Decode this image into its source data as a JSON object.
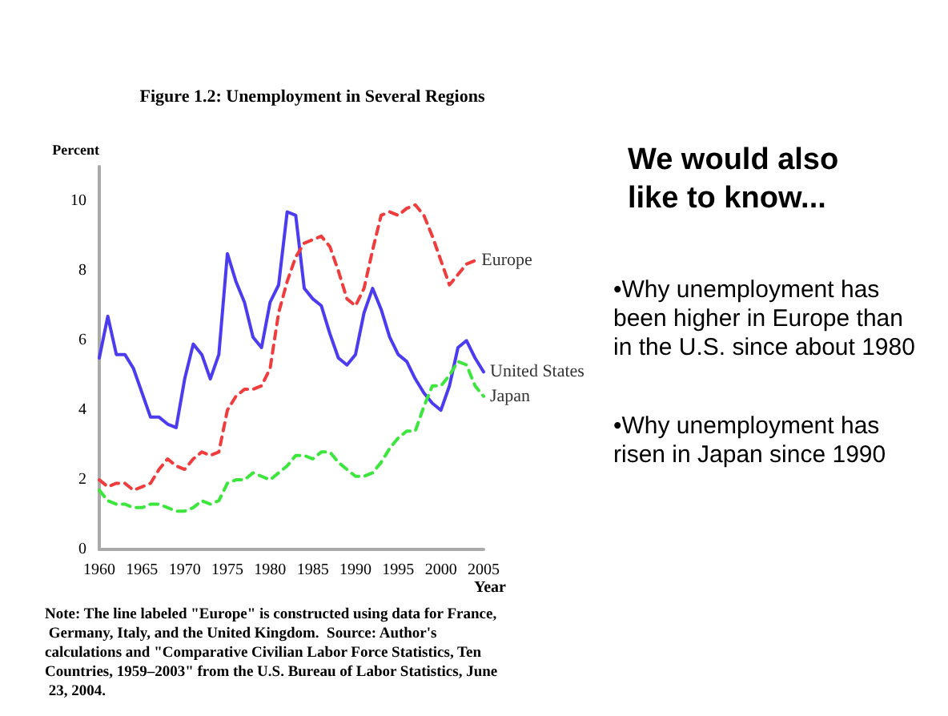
{
  "chart_data": {
    "type": "line",
    "title": "Figure 1.2: Unemployment in Several Regions",
    "ylabel": "Percent",
    "xlabel": "Year",
    "x": [
      1960,
      1961,
      1962,
      1963,
      1964,
      1965,
      1966,
      1967,
      1968,
      1969,
      1970,
      1971,
      1972,
      1973,
      1974,
      1975,
      1976,
      1977,
      1978,
      1979,
      1980,
      1981,
      1982,
      1983,
      1984,
      1985,
      1986,
      1987,
      1988,
      1989,
      1990,
      1991,
      1992,
      1993,
      1994,
      1995,
      1996,
      1997,
      1998,
      1999,
      2000,
      2001,
      2002,
      2003,
      2004,
      2005
    ],
    "series": [
      {
        "name": "United States",
        "color": "#4b3cf0",
        "line_style": "solid",
        "values": [
          5.5,
          6.7,
          5.6,
          5.6,
          5.2,
          4.5,
          3.8,
          3.8,
          3.6,
          3.5,
          4.9,
          5.9,
          5.6,
          4.9,
          5.6,
          8.5,
          7.7,
          7.1,
          6.1,
          5.8,
          7.1,
          7.6,
          9.7,
          9.6,
          7.5,
          7.2,
          7.0,
          6.2,
          5.5,
          5.3,
          5.6,
          6.8,
          7.5,
          6.9,
          6.1,
          5.6,
          5.4,
          4.9,
          4.5,
          4.2,
          4.0,
          4.7,
          5.8,
          6.0,
          5.5,
          5.1
        ]
      },
      {
        "name": "Europe",
        "color": "#f03c3c",
        "line_style": "dashed",
        "values": [
          2.0,
          1.8,
          1.9,
          1.9,
          1.7,
          1.8,
          1.9,
          2.3,
          2.6,
          2.4,
          2.3,
          2.6,
          2.8,
          2.7,
          2.8,
          4.0,
          4.4,
          4.6,
          4.6,
          4.7,
          5.2,
          6.8,
          7.7,
          8.4,
          8.8,
          8.9,
          9.0,
          8.7,
          8.0,
          7.2,
          7.0,
          7.5,
          8.6,
          9.6,
          9.7,
          9.6,
          9.8,
          9.9,
          9.6,
          9.0,
          8.3,
          7.6,
          7.9,
          8.2,
          8.3,
          null
        ]
      },
      {
        "name": "Japan",
        "color": "#3ce63c",
        "line_style": "dashed",
        "values": [
          1.7,
          1.4,
          1.3,
          1.3,
          1.2,
          1.2,
          1.3,
          1.3,
          1.2,
          1.1,
          1.1,
          1.2,
          1.4,
          1.3,
          1.4,
          1.9,
          2.0,
          2.0,
          2.2,
          2.1,
          2.0,
          2.2,
          2.4,
          2.7,
          2.7,
          2.6,
          2.8,
          2.8,
          2.5,
          2.3,
          2.1,
          2.1,
          2.2,
          2.5,
          2.9,
          3.2,
          3.4,
          3.4,
          4.1,
          4.7,
          4.7,
          5.0,
          5.4,
          5.3,
          4.7,
          4.4
        ]
      }
    ],
    "xlim": [
      1960,
      2005
    ],
    "xticks": [
      1960,
      1965,
      1970,
      1975,
      1980,
      1985,
      1990,
      1995,
      2000,
      2005
    ],
    "ylim": [
      0,
      11
    ],
    "yticks": [
      0,
      2,
      4,
      6,
      8,
      10
    ],
    "grid": false,
    "legend": false,
    "marker": "none",
    "annotations": [
      "Note: The line labeled \"Europe\" is constructed using data for France, Germany, Italy, and the United Kingdom.  Source: Author's calculations and \"Comparative Civilian Labor Force Statistics, Ten Countries, 1959–2003\" from the U.S. Bureau of Labor Statistics, June 23, 2004.",
      "We would also like to know...",
      "•Why unemployment has been higher in Europe than in the U.S. since about 1980",
      "•Why unemployment has risen in Japan since 1990"
    ]
  }
}
